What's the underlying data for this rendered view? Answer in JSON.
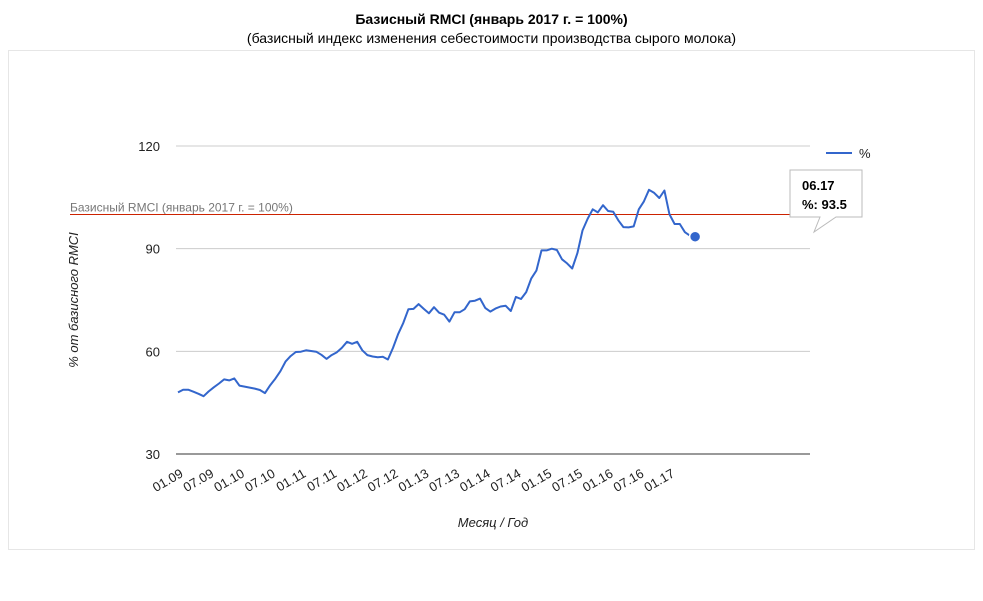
{
  "chart_data": {
    "type": "line",
    "title": "Базисный RMCI (январь 2017 г. = 100%)",
    "subtitle": "(базисный индекс изменения себестоимости производства сырого молока)",
    "xlabel": "Месяц / Год",
    "ylabel": "% от базисного RMCI",
    "ylim": [
      30,
      120
    ],
    "yticks": [
      30,
      60,
      90,
      120
    ],
    "grid": true,
    "legend_position": "top-right",
    "x_start": "01.09",
    "x_end": "06.17",
    "x_tick_labels": [
      "01.09",
      "07.09",
      "01.10",
      "07.10",
      "01.11",
      "07.11",
      "01.12",
      "07.12",
      "01.13",
      "07.13",
      "01.14",
      "07.14",
      "01.15",
      "07.15",
      "01.16",
      "07.16",
      "01.17"
    ],
    "series": [
      {
        "name": "%",
        "color": "#3366cc",
        "values": [
          48.0,
          48.8,
          48.8,
          48.2,
          47.6,
          46.9,
          48.3,
          49.5,
          50.6,
          51.8,
          51.5,
          52.1,
          50.0,
          49.7,
          49.4,
          49.1,
          48.7,
          47.8,
          50.1,
          52.0,
          54.2,
          57.0,
          58.6,
          59.8,
          59.9,
          60.3,
          60.1,
          59.9,
          59.0,
          57.8,
          58.9,
          59.7,
          61.0,
          62.8,
          62.2,
          62.8,
          60.3,
          58.9,
          58.5,
          58.3,
          58.4,
          57.6,
          61.0,
          65.1,
          68.3,
          72.3,
          72.4,
          73.8,
          72.4,
          71.1,
          72.9,
          71.3,
          70.7,
          68.7,
          71.4,
          71.4,
          72.3,
          74.6,
          74.8,
          75.4,
          72.7,
          71.6,
          72.5,
          73.1,
          73.3,
          71.8,
          75.9,
          75.3,
          77.3,
          81.3,
          83.6,
          89.5,
          89.5,
          90.0,
          89.6,
          86.9,
          85.7,
          84.2,
          88.7,
          95.3,
          98.7,
          101.5,
          100.6,
          102.7,
          101.0,
          100.8,
          98.3,
          96.3,
          96.2,
          96.5,
          101.5,
          103.8,
          107.2,
          106.3,
          104.8,
          107.0,
          100.0,
          97.2,
          97.2,
          94.8,
          93.8,
          93.5
        ]
      }
    ],
    "reference_line": {
      "value": 100,
      "label": "Базисный RMCI (январь 2017 г. = 100%)",
      "color": "#cc2200"
    },
    "tooltip": {
      "x_label": "06.17",
      "series_name": "%",
      "value": 93.5,
      "text_line1": "06.17",
      "text_line2": "%: 93.5"
    }
  }
}
